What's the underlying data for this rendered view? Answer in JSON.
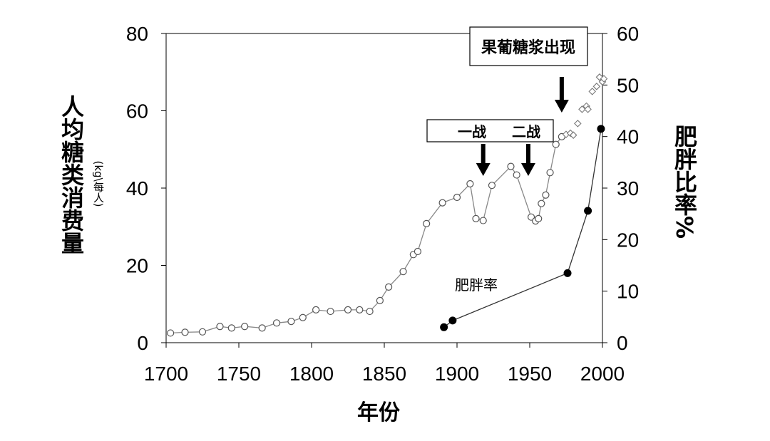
{
  "chart_data": {
    "type": "line",
    "xlabel": "年份",
    "ylabel": "人均糖类消费量",
    "ylabel_unit": "(kg\\每人)",
    "y2label": "肥胖比率%",
    "xlim": [
      1700,
      2000
    ],
    "ylim": [
      0,
      80
    ],
    "y2lim": [
      0,
      60
    ],
    "x_ticks": [
      "1700",
      "1750",
      "1800",
      "1850",
      "1900",
      "1950",
      "2000"
    ],
    "y_ticks": [
      "0",
      "20",
      "40",
      "60",
      "80"
    ],
    "y2_ticks": [
      "0",
      "10",
      "20",
      "30",
      "40",
      "50",
      "60"
    ],
    "grid": false,
    "series": [
      {
        "axis": "left",
        "marker": "open-circle",
        "line": true,
        "x": [
          1703,
          1713,
          1725,
          1737,
          1745,
          1754,
          1766,
          1776,
          1786,
          1794,
          1803,
          1813,
          1825,
          1833,
          1840,
          1847,
          1853,
          1863,
          1870,
          1873,
          1879,
          1890,
          1900,
          1909,
          1913,
          1918,
          1924,
          1937,
          1941,
          1951,
          1954,
          1956,
          1958,
          1961,
          1964,
          1968,
          1972
        ],
        "y": [
          2.5,
          2.7,
          2.8,
          4.2,
          3.8,
          4.2,
          3.8,
          5.1,
          5.5,
          6.5,
          8.5,
          8.1,
          8.5,
          8.5,
          8.1,
          10.9,
          14.4,
          18.4,
          22.8,
          23.6,
          30.8,
          36.2,
          37.6,
          41.1,
          32.1,
          31.6,
          40.7,
          45.6,
          43.4,
          32.5,
          31.5,
          32.1,
          36.0,
          38.2,
          44.0,
          51.3,
          53.3
        ]
      },
      {
        "axis": "left",
        "marker": "open-diamond",
        "line": false,
        "x": [
          1975,
          1978,
          1980,
          1983,
          1986,
          1989,
          1990,
          1993,
          1996,
          1998,
          2000,
          2001
        ],
        "y": [
          53.9,
          54.2,
          53.7,
          56.7,
          60.4,
          61.2,
          60.4,
          65.0,
          66.3,
          68.7,
          67.5,
          68.3
        ]
      },
      {
        "name": "肥胖率",
        "axis": "right",
        "marker": "filled-circle",
        "line": true,
        "x": [
          1891,
          1897,
          1976,
          1990,
          1999
        ],
        "y": [
          3.0,
          4.3,
          13.5,
          25.6,
          41.5
        ]
      }
    ],
    "annotations": [
      {
        "text": "果葡糖浆出现",
        "arrow_x": 1972
      },
      {
        "text": "一战",
        "arrow_x": 1918
      },
      {
        "text": "二战",
        "arrow_x": 1949
      }
    ]
  }
}
